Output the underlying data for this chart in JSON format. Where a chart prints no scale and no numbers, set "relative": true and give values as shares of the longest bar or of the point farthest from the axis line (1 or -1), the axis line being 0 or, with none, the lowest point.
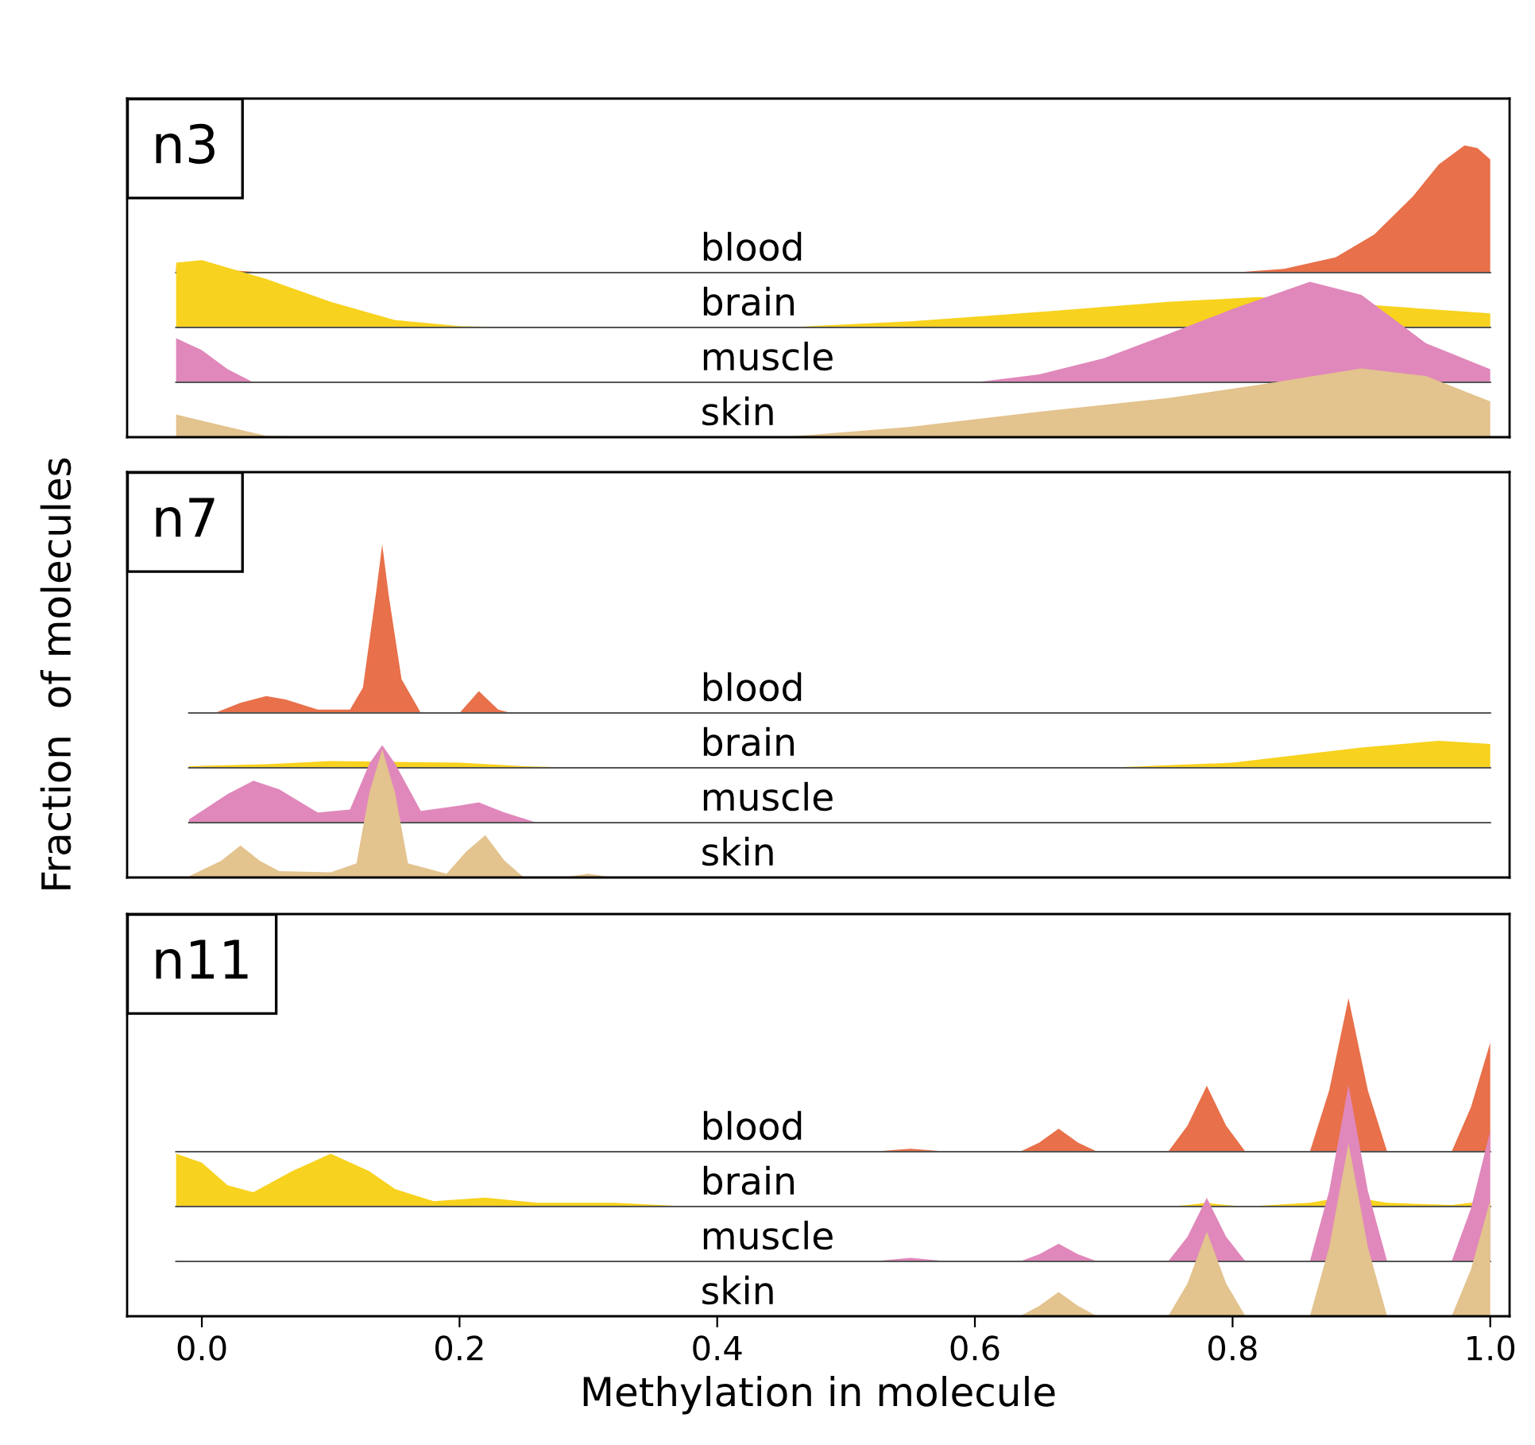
{
  "chart_data": [
    {
      "type": "area",
      "title": "n3",
      "relative": true,
      "xlim": [
        -0.058,
        1.015
      ],
      "tick_labels": false,
      "series": [
        {
          "name": "blood",
          "color": "#e8704a",
          "x": [
            -0.02,
            0.02,
            0.05,
            0.8,
            0.84,
            0.88,
            0.91,
            0.94,
            0.96,
            0.98,
            0.99,
            1.0
          ],
          "values": [
            0.04,
            0.02,
            0,
            0,
            0.03,
            0.12,
            0.3,
            0.6,
            0.85,
            1.0,
            0.98,
            0.89
          ]
        }
      ]
    },
    {
      "type": "area",
      "relative": true,
      "xlim": [
        -0.058,
        1.015
      ],
      "tick_labels": false,
      "series": [
        {
          "name": "brain",
          "color": "#f7d21e",
          "x": [
            -0.02,
            0.0,
            0.05,
            0.1,
            0.15,
            0.2,
            0.25,
            0.45,
            0.55,
            0.65,
            0.75,
            0.82,
            1.0
          ],
          "values": [
            0.96,
            1,
            0.72,
            0.38,
            0.11,
            0.02,
            0,
            0,
            0.09,
            0.23,
            0.38,
            0.45,
            0.21
          ]
        }
      ]
    },
    {
      "type": "area",
      "relative": true,
      "xlim": [
        -0.058,
        1.015
      ],
      "tick_labels": false,
      "series": [
        {
          "name": "muscle",
          "color": "#e088bb",
          "x": [
            -0.02,
            0.0,
            0.02,
            0.04,
            0.6,
            0.65,
            0.7,
            0.75,
            0.8,
            0.86,
            0.9,
            0.95,
            1.0
          ],
          "values": [
            0.44,
            0.32,
            0.13,
            0,
            0,
            0.08,
            0.24,
            0.48,
            0.73,
            1,
            0.87,
            0.39,
            0.13
          ]
        }
      ]
    },
    {
      "type": "area",
      "relative": true,
      "xlim": [
        -0.058,
        1.015
      ],
      "tick_labels": false,
      "series": [
        {
          "name": "skin",
          "color": "#e3c38e",
          "x": [
            -0.02,
            0.02,
            0.05,
            0.1,
            0.45,
            0.55,
            0.65,
            0.75,
            0.82,
            0.9,
            0.95,
            1.0
          ],
          "values": [
            0.33,
            0.15,
            0.02,
            0,
            0,
            0.15,
            0.37,
            0.57,
            0.76,
            1,
            0.89,
            0.52
          ]
        }
      ]
    },
    {
      "type": "area",
      "title": "n7",
      "relative": true,
      "xlim": [
        -0.058,
        1.015
      ],
      "tick_labels": false,
      "series": [
        {
          "name": "blood",
          "color": "#e8704a",
          "x": [
            -0.01,
            0.01,
            0.03,
            0.05,
            0.065,
            0.09,
            0.115,
            0.125,
            0.135,
            0.14,
            0.145,
            0.155,
            0.17,
            0.2,
            0.215,
            0.23,
            0.24,
            1.0
          ],
          "values": [
            0,
            0,
            0.06,
            0.1,
            0.08,
            0.02,
            0.02,
            0.15,
            0.7,
            1.0,
            0.7,
            0.2,
            0,
            0,
            0.13,
            0.02,
            0,
            0
          ]
        }
      ]
    },
    {
      "type": "area",
      "relative": true,
      "ylabel": "Fraction  of molecules",
      "xlim": [
        -0.058,
        1.015
      ],
      "tick_labels": false,
      "series": [
        {
          "name": "brain",
          "color": "#f7d21e",
          "x": [
            -0.01,
            0.05,
            0.1,
            0.2,
            0.25,
            0.3,
            0.7,
            0.8,
            0.9,
            0.96,
            1.0
          ],
          "values": [
            0.06,
            0.13,
            0.25,
            0.19,
            0.06,
            0,
            0,
            0.19,
            0.75,
            1,
            0.88
          ]
        }
      ]
    },
    {
      "type": "area",
      "relative": true,
      "xlim": [
        -0.058,
        1.015
      ],
      "tick_labels": false,
      "series": [
        {
          "name": "muscle",
          "color": "#e088bb",
          "x": [
            -0.01,
            0.02,
            0.04,
            0.06,
            0.09,
            0.115,
            0.13,
            0.14,
            0.15,
            0.17,
            0.2,
            0.215,
            0.235,
            0.26,
            1.0
          ],
          "values": [
            0.04,
            0.37,
            0.54,
            0.43,
            0.13,
            0.17,
            0.76,
            1,
            0.76,
            0.15,
            0.22,
            0.26,
            0.13,
            0,
            0
          ]
        }
      ]
    },
    {
      "type": "area",
      "relative": true,
      "xlim": [
        -0.058,
        1.015
      ],
      "tick_labels": false,
      "series": [
        {
          "name": "skin",
          "color": "#e3c38e",
          "x": [
            -0.01,
            0.015,
            0.03,
            0.045,
            0.06,
            0.1,
            0.12,
            0.13,
            0.14,
            0.15,
            0.16,
            0.19,
            0.205,
            0.22,
            0.235,
            0.25,
            0.28,
            0.3,
            0.32,
            1.0
          ],
          "values": [
            0.01,
            0.13,
            0.25,
            0.13,
            0.05,
            0.04,
            0.11,
            0.66,
            1,
            0.66,
            0.11,
            0.03,
            0.2,
            0.33,
            0.13,
            0,
            0,
            0.03,
            0,
            0
          ]
        }
      ]
    },
    {
      "type": "area",
      "title": "n11",
      "relative": true,
      "xlim": [
        -0.058,
        1.015
      ],
      "tick_labels": false,
      "x": [
        -0.02,
        0.0,
        0.02,
        0.04,
        0.07,
        0.1,
        0.13,
        0.15,
        0.18,
        0.22,
        0.26,
        0.32,
        0.38,
        0.52,
        0.55,
        0.58,
        0.635,
        0.65,
        0.665,
        0.68,
        0.695,
        0.75,
        0.765,
        0.78,
        0.795,
        0.81,
        0.86,
        0.875,
        0.89,
        0.905,
        0.92,
        0.97,
        0.985,
        1.0
      ],
      "series": [
        {
          "name": "blood",
          "color": "#e8704a",
          "values": [
            0,
            0,
            0,
            0,
            0,
            0,
            0,
            0,
            0,
            0,
            0,
            0,
            0,
            0,
            0.02,
            0,
            0,
            0.06,
            0.15,
            0.06,
            0,
            0,
            0.17,
            0.43,
            0.17,
            0,
            0,
            0.4,
            1,
            0.4,
            0,
            0,
            0.29,
            0.71
          ]
        }
      ]
    },
    {
      "type": "area",
      "relative": true,
      "xlim": [
        -0.058,
        1.015
      ],
      "tick_labels": false,
      "series": [
        {
          "name": "brain",
          "color": "#f7d21e",
          "x": [
            -0.02,
            0.0,
            0.02,
            0.04,
            0.07,
            0.1,
            0.13,
            0.15,
            0.18,
            0.22,
            0.26,
            0.32,
            0.38,
            0.52,
            0.55,
            0.58,
            0.635,
            0.65,
            0.665,
            0.68,
            0.695,
            0.75,
            0.765,
            0.78,
            0.795,
            0.81,
            0.86,
            0.875,
            0.905,
            0.92,
            0.97,
            0.985,
            1.0
          ],
          "values": [
            1,
            0.83,
            0.4,
            0.27,
            0.67,
            1,
            0.67,
            0.33,
            0.1,
            0.17,
            0.07,
            0.07,
            0,
            0,
            0,
            0,
            0,
            0,
            0,
            0,
            0,
            0,
            0.03,
            0.07,
            0.03,
            0,
            0.07,
            0.13,
            0.13,
            0.07,
            0.03,
            0.07,
            0.1
          ]
        }
      ]
    },
    {
      "type": "area",
      "relative": true,
      "xlim": [
        -0.058,
        1.015
      ],
      "tick_labels": false,
      "x": [
        -0.02,
        0.0,
        0.02,
        0.04,
        0.07,
        0.1,
        0.13,
        0.15,
        0.18,
        0.22,
        0.26,
        0.32,
        0.38,
        0.52,
        0.55,
        0.58,
        0.635,
        0.65,
        0.665,
        0.68,
        0.695,
        0.75,
        0.765,
        0.78,
        0.795,
        0.81,
        0.86,
        0.875,
        0.89,
        0.905,
        0.92,
        0.97,
        0.985,
        1.0
      ],
      "series": [
        {
          "name": "muscle",
          "color": "#e088bb",
          "values": [
            0,
            0,
            0,
            0,
            0,
            0,
            0,
            0,
            0,
            0,
            0,
            0,
            0,
            0,
            0.02,
            0,
            0,
            0.04,
            0.1,
            0.04,
            0,
            0,
            0.14,
            0.36,
            0.14,
            0,
            0,
            0.4,
            1.0,
            0.4,
            0,
            0,
            0.3,
            0.74
          ]
        }
      ]
    },
    {
      "type": "area",
      "relative": true,
      "xlabel": "Methylation in molecule",
      "xlim": [
        -0.058,
        1.015
      ],
      "xticks": [
        {
          "value": 0,
          "label": "0.0"
        },
        {
          "value": 0.2,
          "label": "0.2"
        },
        {
          "value": 0.4,
          "label": "0.4"
        },
        {
          "value": 0.6,
          "label": "0.6"
        },
        {
          "value": 0.8,
          "label": "0.8"
        },
        {
          "value": 1.0,
          "label": "1.0"
        }
      ],
      "tick_labels": "x",
      "x": [
        -0.02,
        0.0,
        0.02,
        0.04,
        0.07,
        0.1,
        0.13,
        0.15,
        0.18,
        0.22,
        0.26,
        0.32,
        0.38,
        0.52,
        0.55,
        0.58,
        0.635,
        0.65,
        0.665,
        0.68,
        0.695,
        0.75,
        0.765,
        0.78,
        0.795,
        0.81,
        0.86,
        0.875,
        0.89,
        0.905,
        0.92,
        0.97,
        0.985,
        1.0
      ],
      "series": [
        {
          "name": "skin",
          "color": "#e3c38e",
          "values": [
            0,
            0,
            0,
            0,
            0,
            0,
            0,
            0,
            0,
            0,
            0,
            0,
            0,
            0,
            0,
            0,
            0,
            0.06,
            0.14,
            0.06,
            0,
            0,
            0.19,
            0.49,
            0.19,
            0,
            0,
            0.4,
            1,
            0.4,
            0,
            0,
            0.27,
            0.67
          ]
        }
      ]
    }
  ]
}
